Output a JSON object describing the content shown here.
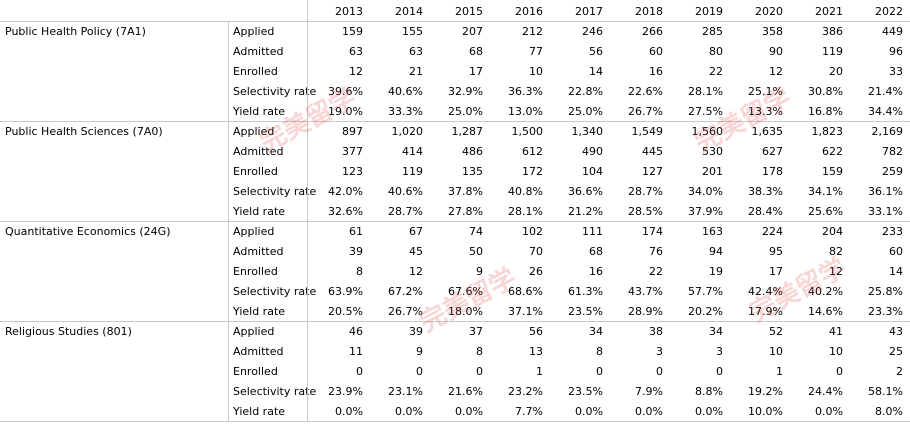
{
  "watermark": "完美留学",
  "years": [
    "2013",
    "2014",
    "2015",
    "2016",
    "2017",
    "2018",
    "2019",
    "2020",
    "2021",
    "2022"
  ],
  "programs": [
    {
      "name": "Public Health Policy (7A1)",
      "rows": [
        {
          "metric": "Applied",
          "values": [
            "159",
            "155",
            "207",
            "212",
            "246",
            "266",
            "285",
            "358",
            "386",
            "449"
          ]
        },
        {
          "metric": "Admitted",
          "values": [
            "63",
            "63",
            "68",
            "77",
            "56",
            "60",
            "80",
            "90",
            "119",
            "96"
          ]
        },
        {
          "metric": "Enrolled",
          "values": [
            "12",
            "21",
            "17",
            "10",
            "14",
            "16",
            "22",
            "12",
            "20",
            "33"
          ]
        },
        {
          "metric": "Selectivity rate",
          "values": [
            "39.6%",
            "40.6%",
            "32.9%",
            "36.3%",
            "22.8%",
            "22.6%",
            "28.1%",
            "25.1%",
            "30.8%",
            "21.4%"
          ]
        },
        {
          "metric": "Yield rate",
          "values": [
            "19.0%",
            "33.3%",
            "25.0%",
            "13.0%",
            "25.0%",
            "26.7%",
            "27.5%",
            "13.3%",
            "16.8%",
            "34.4%"
          ]
        }
      ]
    },
    {
      "name": "Public Health Sciences (7A0)",
      "rows": [
        {
          "metric": "Applied",
          "values": [
            "897",
            "1,020",
            "1,287",
            "1,500",
            "1,340",
            "1,549",
            "1,560",
            "1,635",
            "1,823",
            "2,169"
          ]
        },
        {
          "metric": "Admitted",
          "values": [
            "377",
            "414",
            "486",
            "612",
            "490",
            "445",
            "530",
            "627",
            "622",
            "782"
          ]
        },
        {
          "metric": "Enrolled",
          "values": [
            "123",
            "119",
            "135",
            "172",
            "104",
            "127",
            "201",
            "178",
            "159",
            "259"
          ]
        },
        {
          "metric": "Selectivity rate",
          "values": [
            "42.0%",
            "40.6%",
            "37.8%",
            "40.8%",
            "36.6%",
            "28.7%",
            "34.0%",
            "38.3%",
            "34.1%",
            "36.1%"
          ]
        },
        {
          "metric": "Yield rate",
          "values": [
            "32.6%",
            "28.7%",
            "27.8%",
            "28.1%",
            "21.2%",
            "28.5%",
            "37.9%",
            "28.4%",
            "25.6%",
            "33.1%"
          ]
        }
      ]
    },
    {
      "name": "Quantitative Economics (24G)",
      "rows": [
        {
          "metric": "Applied",
          "values": [
            "61",
            "67",
            "74",
            "102",
            "111",
            "174",
            "163",
            "224",
            "204",
            "233"
          ]
        },
        {
          "metric": "Admitted",
          "values": [
            "39",
            "45",
            "50",
            "70",
            "68",
            "76",
            "94",
            "95",
            "82",
            "60"
          ]
        },
        {
          "metric": "Enrolled",
          "values": [
            "8",
            "12",
            "9",
            "26",
            "16",
            "22",
            "19",
            "17",
            "12",
            "14"
          ]
        },
        {
          "metric": "Selectivity rate",
          "values": [
            "63.9%",
            "67.2%",
            "67.6%",
            "68.6%",
            "61.3%",
            "43.7%",
            "57.7%",
            "42.4%",
            "40.2%",
            "25.8%"
          ]
        },
        {
          "metric": "Yield rate",
          "values": [
            "20.5%",
            "26.7%",
            "18.0%",
            "37.1%",
            "23.5%",
            "28.9%",
            "20.2%",
            "17.9%",
            "14.6%",
            "23.3%"
          ]
        }
      ]
    },
    {
      "name": "Religious Studies (801)",
      "rows": [
        {
          "metric": "Applied",
          "values": [
            "46",
            "39",
            "37",
            "56",
            "34",
            "38",
            "34",
            "52",
            "41",
            "43"
          ]
        },
        {
          "metric": "Admitted",
          "values": [
            "11",
            "9",
            "8",
            "13",
            "8",
            "3",
            "3",
            "10",
            "10",
            "25"
          ]
        },
        {
          "metric": "Enrolled",
          "values": [
            "0",
            "0",
            "0",
            "1",
            "0",
            "0",
            "0",
            "1",
            "0",
            "2"
          ]
        },
        {
          "metric": "Selectivity rate",
          "values": [
            "23.9%",
            "23.1%",
            "21.6%",
            "23.2%",
            "23.5%",
            "7.9%",
            "8.8%",
            "19.2%",
            "24.4%",
            "58.1%"
          ]
        },
        {
          "metric": "Yield rate",
          "values": [
            "0.0%",
            "0.0%",
            "0.0%",
            "7.7%",
            "0.0%",
            "0.0%",
            "0.0%",
            "10.0%",
            "0.0%",
            "8.0%"
          ]
        }
      ]
    }
  ]
}
